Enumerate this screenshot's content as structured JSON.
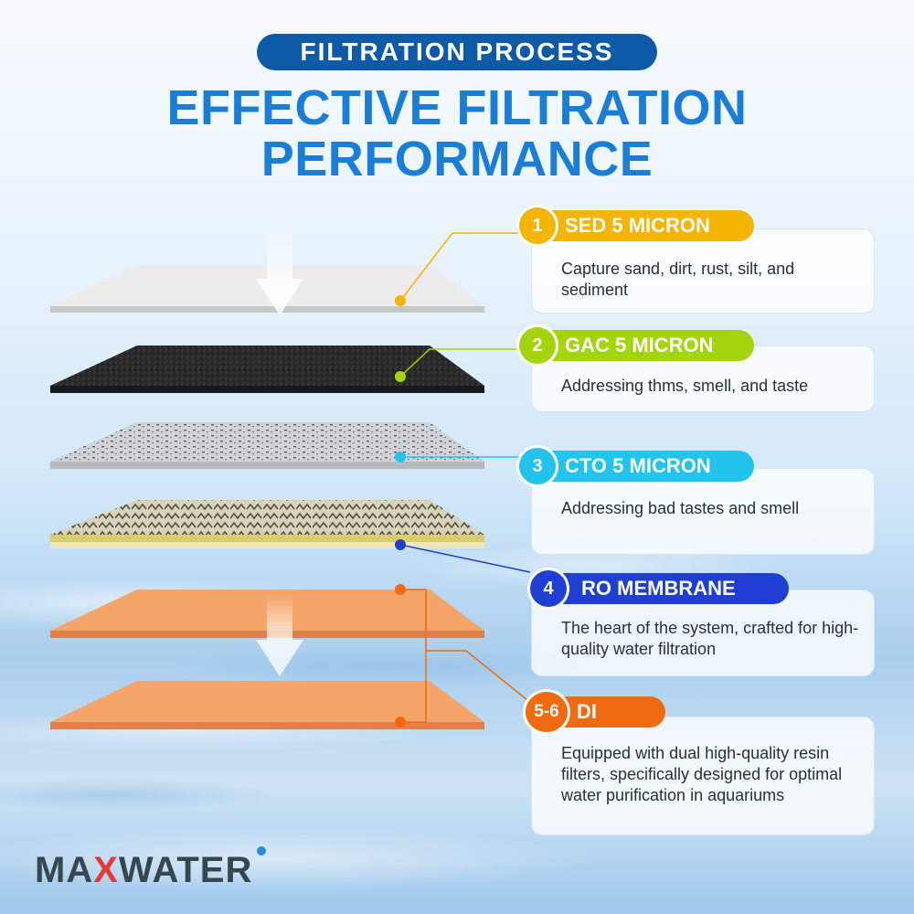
{
  "header": {
    "pill_label": "FILTRATION PROCESS",
    "headline_line1": "EFFECTIVE FILTRATION",
    "headline_line2": "PERFORMANCE"
  },
  "stages": [
    {
      "number": "1",
      "title": "SED 5 MICRON",
      "description": "Capture sand, dirt, rust, silt, and sediment",
      "color": "#f5b400"
    },
    {
      "number": "2",
      "title": "GAC 5 MICRON",
      "description": "Addressing thms, smell, and taste",
      "color": "#a4d40c"
    },
    {
      "number": "3",
      "title": "CTO 5 MICRON",
      "description": "Addressing bad tastes and smell",
      "color": "#22c4ee"
    },
    {
      "number": "4",
      "title": "RO MEMBRANE",
      "description": "The heart of the system, crafted for high-quality water filtration",
      "color": "#1e3fd1"
    },
    {
      "number": "5-6",
      "title": "DI",
      "description": "Equipped with dual high-quality resin filters, specifically designed for optimal water purification in aquariums",
      "color": "#f06a0f"
    }
  ],
  "brand": {
    "name_part1": "MA",
    "name_x": "X",
    "name_part2": "WATER",
    "accent_color": "#e53935"
  }
}
